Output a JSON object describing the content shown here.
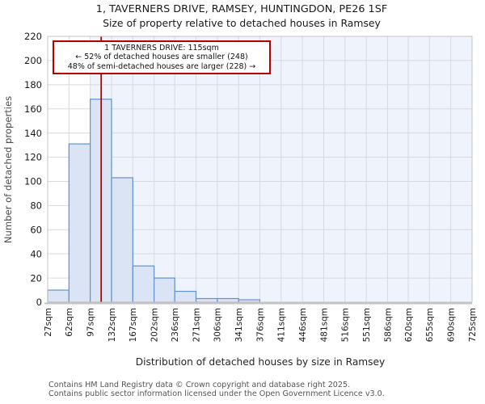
{
  "figure": {
    "title": "1, TAVERNERS DRIVE, RAMSEY, HUNTINGDON, PE26 1SF",
    "subtitle": "Size of property relative to detached houses in Ramsey"
  },
  "annotation": {
    "line1": "1 TAVERNERS DRIVE: 115sqm",
    "line2": "← 52% of detached houses are smaller (248)",
    "line3": "48% of semi-detached houses are larger (228) →"
  },
  "footer": {
    "line1": "Contains HM Land Registry data © Crown copyright and database right 2025.",
    "line2": "Contains public sector information licensed under the Open Government Licence v3.0."
  },
  "chart_data": {
    "type": "bar",
    "title": "1, TAVERNERS DRIVE, RAMSEY, HUNTINGDON, PE26 1SF",
    "subtitle": "Size of property relative to detached houses in Ramsey",
    "xlabel": "Distribution of detached houses by size in Ramsey",
    "ylabel": "Number of detached properties",
    "bin_edges_sqm": [
      27,
      62,
      97,
      132,
      167,
      202,
      236,
      271,
      306,
      341,
      376,
      411,
      446,
      481,
      516,
      551,
      586,
      620,
      655,
      690,
      725
    ],
    "x_tick_labels": [
      "27sqm",
      "62sqm",
      "97sqm",
      "132sqm",
      "167sqm",
      "202sqm",
      "236sqm",
      "271sqm",
      "306sqm",
      "341sqm",
      "376sqm",
      "411sqm",
      "446sqm",
      "481sqm",
      "516sqm",
      "551sqm",
      "586sqm",
      "620sqm",
      "655sqm",
      "690sqm",
      "725sqm"
    ],
    "values": [
      10,
      131,
      168,
      103,
      30,
      20,
      9,
      3,
      3,
      2,
      0,
      0,
      0,
      0,
      0,
      0,
      0,
      0,
      0,
      0
    ],
    "ylim": [
      0,
      220
    ],
    "y_ticks": [
      0,
      20,
      40,
      60,
      80,
      100,
      120,
      140,
      160,
      180,
      200,
      220
    ],
    "grid": true,
    "legend": "none",
    "marker_sqm": 115,
    "shaded_from_sqm": 97,
    "colors": {
      "bar_fill": "#dbe4f4",
      "bar_stroke": "#6191ce",
      "marker_line": "#b40000",
      "annotation_border": "#b40000",
      "shaded_region": "#eff3fb",
      "gridline": "#d7dade",
      "spine": "#c3c3c3"
    }
  }
}
